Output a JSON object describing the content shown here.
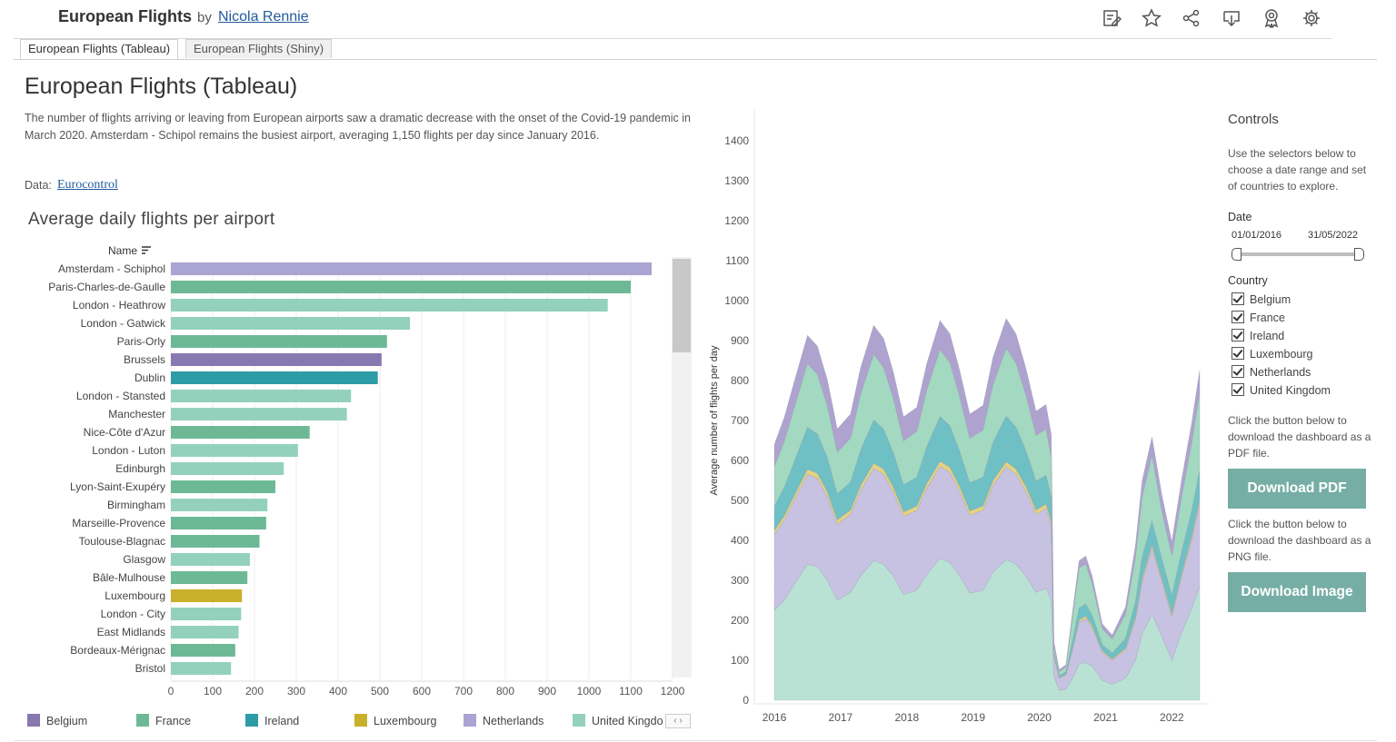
{
  "header": {
    "title": "European Flights",
    "by": "by",
    "author": "Nicola Rennie",
    "icons": [
      "edit-icon",
      "star-icon",
      "share-icon",
      "download-icon",
      "badge-icon",
      "gear-icon"
    ]
  },
  "tabs": [
    {
      "label": "European Flights (Tableau)",
      "active": true
    },
    {
      "label": "European Flights (Shiny)",
      "active": false
    }
  ],
  "dashboard": {
    "title": "European Flights (Tableau)",
    "description": "The number of flights arriving or leaving from European airports saw a dramatic decrease with the onset of the Covid-19 pandemic in March 2020. Amsterdam - Schipol remains the busiest airport, averaging 1,150 flights per day since January 2016.",
    "data_label": "Data:",
    "data_source": "Eurocontrol"
  },
  "bar_chart": {
    "title": "Average daily flights per airport",
    "name_header": "Name"
  },
  "colors": {
    "Belgium": "#8878b0",
    "France": "#6db996",
    "Ireland": "#2e9ca6",
    "Luxembourg": "#c8b02a",
    "Netherlands": "#aaa4d2",
    "United Kingdom": "#93d1bd"
  },
  "legend": [
    {
      "label": "Belgium",
      "color": "#8878b0"
    },
    {
      "label": "France",
      "color": "#6db996"
    },
    {
      "label": "Ireland",
      "color": "#2e9ca6"
    },
    {
      "label": "Luxembourg",
      "color": "#c8b02a"
    },
    {
      "label": "Netherlands",
      "color": "#aaa4d2"
    },
    {
      "label": "United Kingdo",
      "color": "#93d1bd"
    }
  ],
  "chart_data": [
    {
      "type": "bar",
      "title": "Average daily flights per airport",
      "xlabel": "",
      "ylabel": "Name",
      "xlim": [
        0,
        1200
      ],
      "xticks": [
        "0",
        "100",
        "200",
        "300",
        "400",
        "500",
        "600",
        "700",
        "800",
        "900",
        "1000",
        "1100",
        "1200"
      ],
      "categories": [
        "Amsterdam - Schiphol",
        "Paris-Charles-de-Gaulle",
        "London - Heathrow",
        "London - Gatwick",
        "Paris-Orly",
        "Brussels",
        "Dublin",
        "London - Stansted",
        "Manchester",
        "Nice-Côte d'Azur",
        "London - Luton",
        "Edinburgh",
        "Lyon-Saint-Exupéry",
        "Birmingham",
        "Marseille-Provence",
        "Toulouse-Blagnac",
        "Glasgow",
        "Bâle-Mulhouse",
        "Luxembourg",
        "London - City",
        "East Midlands",
        "Bordeaux-Mérignac",
        "Bristol"
      ],
      "values": [
        1150,
        1100,
        1045,
        572,
        517,
        504,
        495,
        431,
        421,
        332,
        304,
        270,
        250,
        231,
        228,
        212,
        189,
        183,
        170,
        168,
        162,
        154,
        144
      ],
      "country": [
        "Netherlands",
        "France",
        "United Kingdom",
        "United Kingdom",
        "France",
        "Belgium",
        "Ireland",
        "United Kingdom",
        "United Kingdom",
        "France",
        "United Kingdom",
        "United Kingdom",
        "France",
        "United Kingdom",
        "France",
        "France",
        "United Kingdom",
        "France",
        "Luxembourg",
        "United Kingdom",
        "United Kingdom",
        "France",
        "United Kingdom"
      ],
      "grid": true
    },
    {
      "type": "area",
      "ylabel": "Average number of flights per day",
      "ylim": [
        0,
        1400
      ],
      "yticks": [
        "0",
        "100",
        "200",
        "300",
        "400",
        "500",
        "600",
        "700",
        "800",
        "900",
        "1000",
        "1100",
        "1200",
        "1300",
        "1400"
      ],
      "xlim": [
        2016,
        2022.42
      ],
      "xticks": [
        "2016",
        "2017",
        "2018",
        "2019",
        "2020",
        "2021",
        "2022"
      ],
      "stack_order_bottom_to_top": [
        "United Kingdom",
        "Netherlands",
        "Luxembourg",
        "Ireland",
        "France",
        "Belgium"
      ],
      "x": [
        2016.0,
        2016.15,
        2016.3,
        2016.5,
        2016.65,
        2016.8,
        2016.95,
        2017.15,
        2017.3,
        2017.5,
        2017.65,
        2017.8,
        2017.95,
        2018.15,
        2018.3,
        2018.5,
        2018.65,
        2018.8,
        2018.95,
        2019.15,
        2019.3,
        2019.5,
        2019.65,
        2019.8,
        2019.95,
        2020.1,
        2020.18,
        2020.22,
        2020.3,
        2020.4,
        2020.5,
        2020.6,
        2020.7,
        2020.8,
        2020.95,
        2021.1,
        2021.3,
        2021.45,
        2021.55,
        2021.7,
        2021.85,
        2022.0,
        2022.15,
        2022.3,
        2022.42
      ],
      "series": [
        {
          "name": "United Kingdom",
          "values": [
            225,
            250,
            290,
            340,
            335,
            300,
            250,
            270,
            310,
            350,
            340,
            310,
            265,
            275,
            315,
            355,
            345,
            310,
            268,
            275,
            320,
            352,
            340,
            310,
            270,
            280,
            250,
            60,
            25,
            28,
            55,
            90,
            95,
            85,
            50,
            40,
            55,
            100,
            165,
            215,
            160,
            100,
            170,
            230,
            285
          ]
        },
        {
          "name": "Netherlands",
          "values": [
            190,
            200,
            210,
            225,
            220,
            210,
            190,
            195,
            215,
            230,
            225,
            210,
            195,
            200,
            215,
            230,
            225,
            212,
            195,
            200,
            218,
            232,
            225,
            212,
            195,
            200,
            188,
            50,
            30,
            35,
            70,
            105,
            110,
            95,
            70,
            60,
            70,
            100,
            130,
            165,
            135,
            110,
            140,
            170,
            205
          ]
        },
        {
          "name": "Luxembourg",
          "values": [
            10,
            11,
            12,
            13,
            13,
            12,
            11,
            11,
            12,
            13,
            13,
            12,
            11,
            11,
            12,
            13,
            13,
            12,
            11,
            11,
            12,
            13,
            13,
            12,
            11,
            11,
            10,
            3,
            2,
            2,
            4,
            6,
            6,
            6,
            4,
            3,
            5,
            7,
            8,
            9,
            8,
            7,
            8,
            10,
            11
          ]
        },
        {
          "name": "France",
          "values": [
            100,
            115,
            135,
            160,
            150,
            130,
            105,
            110,
            140,
            165,
            155,
            135,
            110,
            115,
            142,
            168,
            158,
            136,
            112,
            118,
            145,
            170,
            160,
            138,
            115,
            115,
            100,
            15,
            10,
            12,
            60,
            100,
            100,
            80,
            40,
            35,
            60,
            110,
            150,
            165,
            120,
            100,
            140,
            170,
            195
          ]
        },
        {
          "name": "Ireland",
          "values": [
            60,
            72,
            85,
            105,
            98,
            85,
            65,
            70,
            88,
            108,
            100,
            86,
            68,
            72,
            92,
            112,
            104,
            88,
            70,
            72,
            95,
            114,
            105,
            90,
            72,
            72,
            62,
            8,
            5,
            6,
            20,
            30,
            30,
            25,
            15,
            15,
            25,
            40,
            55,
            60,
            50,
            45,
            55,
            65,
            75
          ]
        },
        {
          "name": "Belgium",
          "values": [
            55,
            60,
            65,
            70,
            70,
            65,
            58,
            60,
            66,
            72,
            72,
            66,
            60,
            60,
            66,
            72,
            72,
            66,
            60,
            62,
            68,
            74,
            73,
            67,
            60,
            62,
            55,
            10,
            5,
            5,
            12,
            18,
            20,
            18,
            12,
            10,
            18,
            30,
            40,
            45,
            40,
            35,
            42,
            50,
            55
          ]
        }
      ]
    }
  ],
  "controls": {
    "title": "Controls",
    "intro": "Use the selectors below to choose a date range and set of countries to explore.",
    "date_label": "Date",
    "date_start": "01/01/2016",
    "date_end": "31/05/2022",
    "country_label": "Country",
    "countries": [
      {
        "label": "Belgium",
        "checked": true
      },
      {
        "label": "France",
        "checked": true
      },
      {
        "label": "Ireland",
        "checked": true
      },
      {
        "label": "Luxembourg",
        "checked": true
      },
      {
        "label": "Netherlands",
        "checked": true
      },
      {
        "label": "United Kingdom",
        "checked": true
      }
    ],
    "pdf_text": "Click the button below to download the dashboard as a PDF file.",
    "pdf_button": "Download PDF",
    "png_text": "Click the button below to download the dashboard as a PNG file.",
    "png_button": "Download Image"
  }
}
